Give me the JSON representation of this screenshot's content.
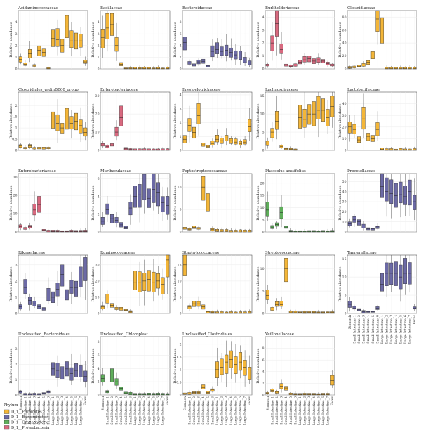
{
  "legend": {
    "title": "Phylum",
    "items": [
      {
        "label": "D_1__Firmicutes",
        "color": "#f4b638"
      },
      {
        "label": "D_1__Bacteroidetes",
        "color": "#6c6aa5"
      },
      {
        "label": "D_1__Cyanobacteria",
        "color": "#5fae5b"
      },
      {
        "label": "D_1__Proteobacteria",
        "color": "#d8697f"
      }
    ]
  },
  "x_categories": [
    "Stomach",
    "Small Intestine_1",
    "Small Intestine_2",
    "Small Intestine_3",
    "Small Intestine_4",
    "Small Intestine_5",
    "Small Intestine_6",
    "Large Intestine_1",
    "Large Intestine_2",
    "Large Intestine_3",
    "Large Intestine_4",
    "Large Intestine_5",
    "Large Intestine_6",
    "Large Intestine_7",
    "Feces"
  ],
  "ylabel": "Relative abundance",
  "chart_data": [
    {
      "type": "box",
      "title": "Acidaminococcaceae",
      "phylum": "Firmicutes",
      "color": "#f4b638",
      "ylim": [
        0,
        5
      ],
      "yticks": [
        0,
        1,
        2,
        3,
        4
      ],
      "values": [
        0.8,
        0.4,
        1.3,
        0.3,
        1.6,
        1.4,
        0.02,
        2.6,
        2.5,
        2.0,
        3.6,
        2.4,
        2.4,
        2.4,
        0.6
      ]
    },
    {
      "type": "box",
      "title": "Bacillaceae",
      "phylum": "Firmicutes",
      "color": "#f4b638",
      "ylim": [
        0,
        5
      ],
      "yticks": [
        0,
        1,
        2,
        3,
        4
      ],
      "values": [
        2.7,
        3.5,
        3.8,
        2.0,
        0.4,
        0.03,
        0.02,
        0.02,
        0.02,
        0.02,
        0.02,
        0.02,
        0.02,
        0.02,
        0.02
      ]
    },
    {
      "type": "box",
      "title": "Bacteroidaceae",
      "phylum": "Bacteroidetes",
      "color": "#6c6aa5",
      "ylim": [
        0,
        10
      ],
      "yticks": [
        0,
        2,
        4,
        6,
        8
      ],
      "values": [
        4.5,
        1.0,
        0.7,
        1.2,
        1.3,
        0.5,
        3.0,
        3.3,
        3.0,
        3.2,
        2.8,
        2.4,
        2.2,
        1.5,
        1.0
      ]
    },
    {
      "type": "box",
      "title": "Burkholderiaceae",
      "phylum": "Proteobacteria",
      "color": "#d8697f",
      "ylim": [
        0,
        4.5
      ],
      "yticks": [
        0,
        1,
        2,
        3,
        4
      ],
      "values": [
        0.3,
        2.0,
        3.5,
        1.5,
        0.3,
        0.2,
        0.3,
        0.5,
        0.7,
        0.8,
        0.6,
        0.7,
        0.6,
        0.4,
        0.3
      ]
    },
    {
      "type": "box",
      "title": "Clostridiaceae",
      "phylum": "Firmicutes",
      "color": "#f4b638",
      "ylim": [
        0,
        90
      ],
      "yticks": [
        0,
        20,
        40,
        60,
        80
      ],
      "values": [
        2,
        3,
        4,
        6,
        10,
        20,
        77,
        60,
        1,
        1,
        1,
        1,
        1,
        1,
        1
      ]
    },
    {
      "type": "box",
      "title": "Clostridiales_vadinBB60_group",
      "phylum": "Firmicutes",
      "color": "#f4b638",
      "ylim": [
        0,
        2.6
      ],
      "yticks": [
        0,
        0.5,
        1,
        1.5,
        2
      ],
      "values": [
        0.2,
        0.1,
        0.2,
        0.1,
        0.1,
        0.1,
        0.1,
        1.4,
        1.2,
        1.0,
        1.4,
        1.2,
        1.3,
        1.1,
        0.8
      ]
    },
    {
      "type": "box",
      "title": "Enterobacteriaceae",
      "phylum": "Proteobacteria",
      "color": "#d8697f",
      "ylim": [
        0,
        32
      ],
      "yticks": [
        0,
        10,
        20,
        30
      ],
      "values": [
        3,
        2,
        3,
        10,
        18,
        1,
        0.5,
        0.3,
        0.3,
        0.3,
        0.3,
        0.3,
        0.3,
        0.3,
        0.3
      ]
    },
    {
      "type": "box",
      "title": "Erysipelotrichaceae",
      "phylum": "Firmicutes",
      "color": "#f4b638",
      "ylim": [
        0,
        4.2
      ],
      "yticks": [
        0,
        1,
        2,
        3,
        4
      ],
      "values": [
        0.8,
        1.8,
        1.3,
        2.5,
        0.4,
        0.3,
        0.5,
        0.8,
        0.7,
        0.9,
        0.7,
        0.6,
        0.5,
        0.6,
        1.7
      ]
    },
    {
      "type": "box",
      "title": "Lachnospiraceae",
      "phylum": "Firmicutes",
      "color": "#f4b638",
      "ylim": [
        0,
        16
      ],
      "yticks": [
        0,
        5,
        10,
        15
      ],
      "values": [
        2,
        5,
        8,
        1,
        0.5,
        0.3,
        0.2,
        9,
        8.5,
        10,
        10,
        11,
        11,
        9,
        12
      ]
    },
    {
      "type": "box",
      "title": "Lactobacillaceae",
      "phylum": "Firmicutes",
      "color": "#f4b638",
      "ylim": [
        0,
        50
      ],
      "yticks": [
        0,
        10,
        20,
        30,
        40
      ],
      "values": [
        20,
        18,
        9,
        27,
        12,
        10,
        18,
        1,
        0.5,
        0.5,
        0.5,
        0.5,
        0.5,
        0.5,
        0.5
      ]
    },
    {
      "type": "box",
      "title": "Enterobacteriaceae",
      "phylum": "Proteobacteria",
      "color": "#d8697f",
      "ylim": [
        0,
        32
      ],
      "yticks": [
        0,
        10,
        20,
        30
      ],
      "values": [
        3,
        2,
        3,
        12,
        15,
        1,
        0.5,
        0.3,
        0.3,
        0.3,
        0.3,
        0.3,
        0.3,
        0.3,
        0.3
      ]
    },
    {
      "type": "box",
      "title": "Muribaculaceae",
      "phylum": "Bacteroidetes",
      "color": "#6c6aa5",
      "ylim": [
        0,
        6.6
      ],
      "yticks": [
        0,
        2,
        4,
        6
      ],
      "values": [
        1.2,
        2.5,
        1.5,
        1.3,
        0.8,
        0.5,
        2.7,
        4.0,
        4.2,
        5.2,
        3.8,
        4.8,
        4.5,
        3.3,
        3.0
      ]
    },
    {
      "type": "box",
      "title": "Peptostreptococcaceae",
      "phylum": "Firmicutes",
      "color": "#f4b638",
      "ylim": [
        0,
        13
      ],
      "yticks": [
        0,
        5,
        10
      ],
      "values": [
        0.8,
        0.6,
        1.0,
        0.8,
        10,
        6.2,
        0.5,
        0.3,
        0.3,
        0.3,
        0.2,
        0.2,
        0.2,
        0.2,
        0.2
      ]
    },
    {
      "type": "box",
      "title": "Phaseolus acutifolius",
      "phylum": "Cyanobacteria",
      "color": "#5fae5b",
      "ylim": [
        0,
        24
      ],
      "yticks": [
        0,
        5,
        10,
        15,
        20
      ],
      "values": [
        9,
        2,
        3,
        8,
        2,
        0.2,
        0.1,
        0.1,
        0.1,
        0.1,
        0.1,
        0.1,
        0.1,
        0.1,
        0.1
      ]
    },
    {
      "type": "box",
      "title": "Prevotellaceae",
      "phylum": "Bacteroidetes",
      "color": "#6c6aa5",
      "ylim": [
        0,
        58
      ],
      "yticks": [
        0,
        10,
        20,
        30,
        40,
        50
      ],
      "values": [
        8,
        12,
        10,
        6,
        3,
        3,
        5,
        45,
        40,
        38,
        36,
        37,
        35,
        40,
        30
      ]
    },
    {
      "type": "box",
      "title": "Rikenellaceae",
      "phylum": "Bacteroidetes",
      "color": "#6c6aa5",
      "ylim": [
        0,
        3.6
      ],
      "yticks": [
        0,
        1,
        2,
        3
      ],
      "values": [
        0.4,
        1.6,
        0.8,
        0.6,
        0.4,
        0.3,
        1.2,
        1.0,
        1.5,
        2.4,
        1.2,
        1.6,
        1.6,
        2.2,
        2.8
      ]
    },
    {
      "type": "box",
      "title": "Ruminococcaceae",
      "phylum": "Firmicutes",
      "color": "#f4b638",
      "ylim": [
        0,
        36
      ],
      "yticks": [
        0,
        10,
        20,
        30
      ],
      "values": [
        4,
        9,
        5,
        3,
        3,
        2,
        1,
        19,
        19,
        20,
        21,
        19,
        20,
        18,
        33
      ]
    },
    {
      "type": "box",
      "title": "Staphylococcaceae",
      "phylum": "Firmicutes",
      "color": "#f4b638",
      "ylim": [
        0,
        18
      ],
      "yticks": [
        0,
        5,
        10,
        15
      ],
      "values": [
        15,
        2,
        3,
        3,
        2,
        0.5,
        0.3,
        0.2,
        0.2,
        0.2,
        0.2,
        0.2,
        0.2,
        0.2,
        0.2
      ]
    },
    {
      "type": "box",
      "title": "Streptococcaceae",
      "phylum": "Firmicutes",
      "color": "#f4b638",
      "ylim": [
        0,
        13
      ],
      "yticks": [
        0,
        5,
        10
      ],
      "values": [
        4,
        1,
        2,
        2,
        10,
        0.3,
        0.3,
        0.2,
        0.2,
        0.2,
        0.2,
        0.2,
        0.2,
        0.2,
        0.2
      ]
    },
    {
      "type": "box",
      "title": "Tannerellaceae",
      "phylum": "Bacteroidetes",
      "color": "#6c6aa5",
      "ylim": [
        0,
        16
      ],
      "yticks": [
        0,
        5,
        10,
        15
      ],
      "values": [
        2.5,
        1.5,
        1,
        0.5,
        0.5,
        0.5,
        1.5,
        8,
        11,
        11,
        11,
        10,
        11,
        11,
        1.5
      ]
    },
    {
      "type": "box",
      "title": "Unclassified_Bacteroidales",
      "phylum": "Bacteroidetes",
      "color": "#6c6aa5",
      "ylim": [
        0,
        3.8
      ],
      "yticks": [
        0,
        1,
        2,
        3
      ],
      "values": [
        0.2,
        0.05,
        0.05,
        0.05,
        0.05,
        0.1,
        0.2,
        1.7,
        1.6,
        1.5,
        1.7,
        1.4,
        1.6,
        1.5,
        1.2
      ]
    },
    {
      "type": "box",
      "title": "Unclassified_Chloroplast",
      "phylum": "Cyanobacteria",
      "color": "#5fae5b",
      "ylim": [
        0,
        8.8
      ],
      "yticks": [
        0,
        2,
        4,
        6,
        8
      ],
      "values": [
        2.5,
        0.5,
        3,
        2,
        1,
        0.3,
        0.2,
        0.1,
        0.1,
        0.1,
        0.1,
        0.1,
        0.1,
        0.1,
        0.1
      ]
    },
    {
      "type": "box",
      "title": "Unclassified_Clostridiales",
      "phylum": "Firmicutes",
      "color": "#f4b638",
      "ylim": [
        0,
        2.3
      ],
      "yticks": [
        0,
        0.5,
        1,
        1.5,
        2
      ],
      "values": [
        0.05,
        0.05,
        0.1,
        0.1,
        0.3,
        0.1,
        0.2,
        1.0,
        1.1,
        1.3,
        1.4,
        1.2,
        1.3,
        1.1,
        0.9
      ]
    },
    {
      "type": "box",
      "title": "Veillonellaceae",
      "phylum": "Firmicutes",
      "color": "#f4b638",
      "ylim": [
        0,
        10
      ],
      "yticks": [
        0,
        2,
        4,
        6,
        8
      ],
      "values": [
        0.3,
        0.8,
        0.5,
        1.5,
        1.2,
        0.2,
        0.1,
        0.1,
        0.1,
        0.1,
        0.1,
        0.1,
        0.1,
        0.1,
        2.5
      ]
    }
  ]
}
